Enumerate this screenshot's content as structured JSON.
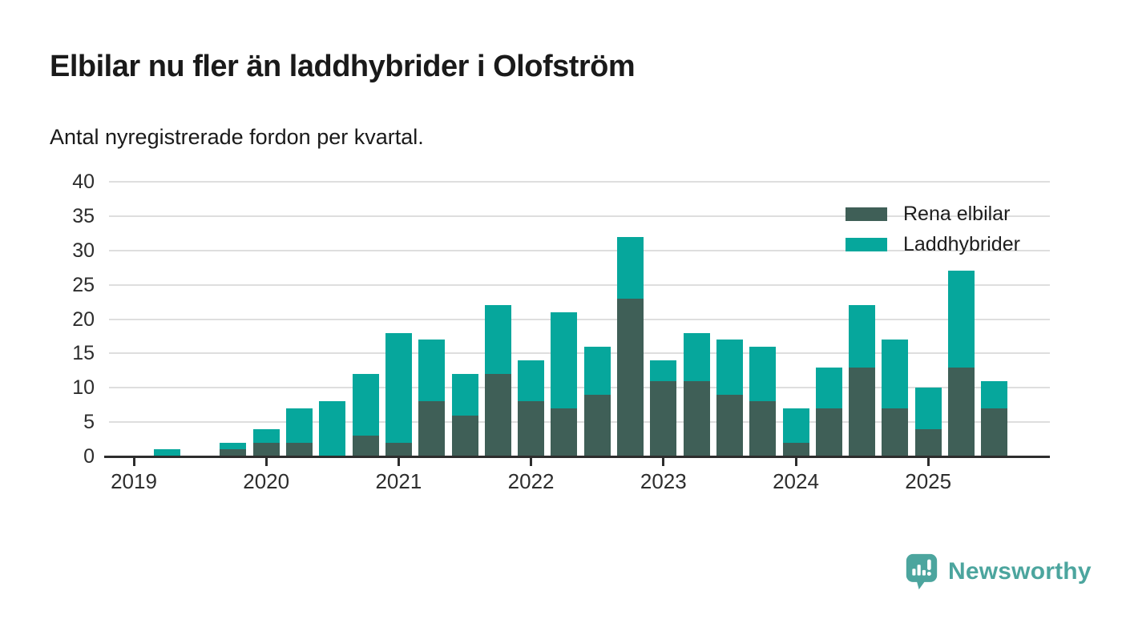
{
  "header": {
    "title": "Elbilar nu fler än laddhybrider i Olofström",
    "subtitle": "Antal nyregistrerade fordon per kvartal."
  },
  "chart_data": {
    "type": "bar",
    "stacked": true,
    "title": "Elbilar nu fler än laddhybrider i Olofström",
    "subtitle": "Antal nyregistrerade fordon per kvartal.",
    "x": [
      "2019 K1",
      "2019 K2",
      "2019 K3",
      "2019 K4",
      "2020 K1",
      "2020 K2",
      "2020 K3",
      "2020 K4",
      "2021 K1",
      "2021 K2",
      "2021 K3",
      "2021 K4",
      "2022 K1",
      "2022 K2",
      "2022 K3",
      "2022 K4",
      "2023 K1",
      "2023 K2",
      "2023 K3",
      "2023 K4",
      "2024 K1",
      "2024 K2",
      "2024 K3",
      "2024 K4",
      "2025 K1",
      "2025 K2",
      "2025 K3"
    ],
    "series": [
      {
        "name": "Rena elbilar",
        "color": "#3f5f57",
        "values": [
          0,
          0,
          0,
          1,
          2,
          2,
          0,
          3,
          2,
          8,
          6,
          12,
          8,
          7,
          9,
          23,
          11,
          11,
          9,
          8,
          2,
          7,
          13,
          7,
          4,
          13,
          7
        ]
      },
      {
        "name": "Laddhybrider",
        "color": "#06a79c",
        "values": [
          0,
          1,
          0,
          1,
          2,
          5,
          8,
          9,
          16,
          9,
          6,
          10,
          6,
          14,
          7,
          9,
          3,
          7,
          8,
          8,
          5,
          6,
          9,
          10,
          6,
          14,
          4
        ]
      }
    ],
    "totals": [
      0,
      1,
      0,
      2,
      4,
      7,
      8,
      12,
      18,
      17,
      12,
      22,
      14,
      21,
      16,
      32,
      14,
      18,
      17,
      16,
      7,
      13,
      22,
      17,
      10,
      27,
      11
    ],
    "year_labels": [
      "2019",
      "2020",
      "2021",
      "2022",
      "2023",
      "2024",
      "2025"
    ],
    "yticks": [
      0,
      5,
      10,
      15,
      20,
      25,
      30,
      35,
      40
    ],
    "ylim": [
      0,
      40
    ],
    "grid": "horizontal",
    "legend_position": "top-right"
  },
  "legend": {
    "items": [
      {
        "label": "Rena elbilar",
        "color": "#3f5f57"
      },
      {
        "label": "Laddhybrider",
        "color": "#06a79c"
      }
    ]
  },
  "footer": {
    "brand": "Newsworthy",
    "brand_color": "#4ca59e"
  }
}
